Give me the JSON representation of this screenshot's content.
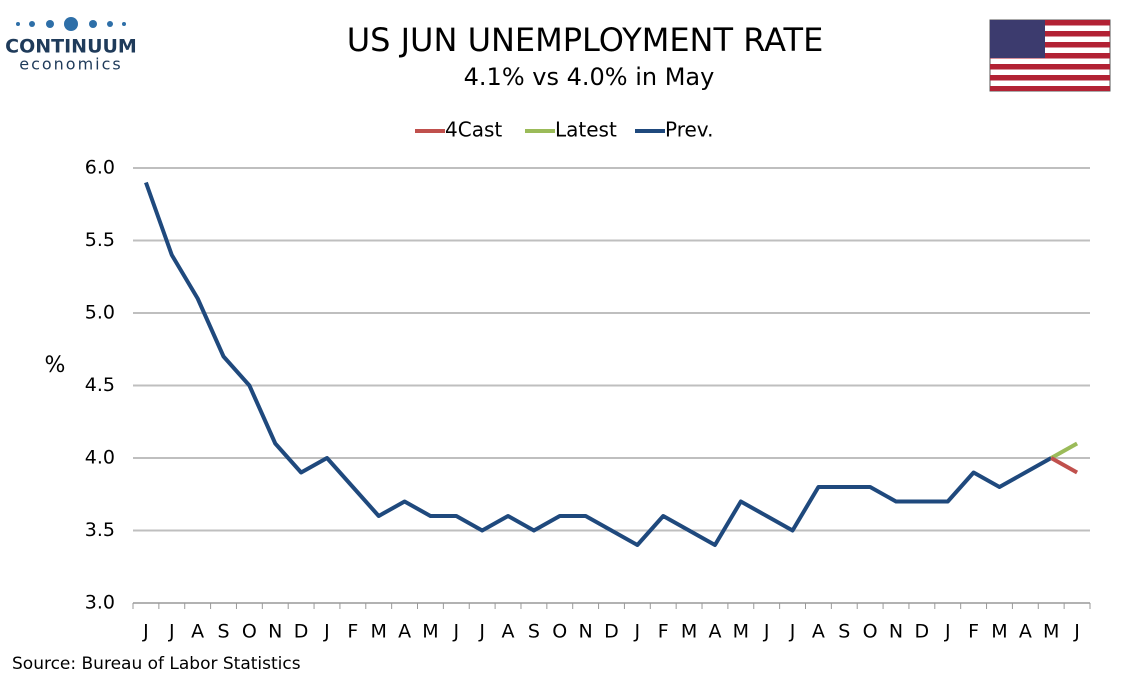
{
  "logo": {
    "name": "CONTINUUM",
    "tagline": "economics"
  },
  "chart_data": {
    "type": "line",
    "title": "US JUN UNEMPLOYMENT RATE",
    "subtitle": "4.1% vs 4.0% in May",
    "y_label": "%",
    "source": "Source: Bureau of Labor Statistics",
    "categories": [
      "J",
      "J",
      "A",
      "S",
      "O",
      "N",
      "D",
      "J",
      "F",
      "M",
      "A",
      "M",
      "J",
      "J",
      "A",
      "S",
      "O",
      "N",
      "D",
      "J",
      "F",
      "M",
      "A",
      "M",
      "J",
      "J",
      "A",
      "S",
      "O",
      "N",
      "D",
      "J",
      "F",
      "M",
      "A",
      "M",
      "J"
    ],
    "series": [
      {
        "name": "4Cast",
        "color": "#c0504d",
        "values": [
          null,
          null,
          null,
          null,
          null,
          null,
          null,
          null,
          null,
          null,
          null,
          null,
          null,
          null,
          null,
          null,
          null,
          null,
          null,
          null,
          null,
          null,
          null,
          null,
          null,
          null,
          null,
          null,
          null,
          null,
          null,
          null,
          null,
          null,
          null,
          4.0,
          3.9
        ]
      },
      {
        "name": "Latest",
        "color": "#9bbb59",
        "values": [
          null,
          null,
          null,
          null,
          null,
          null,
          null,
          null,
          null,
          null,
          null,
          null,
          null,
          null,
          null,
          null,
          null,
          null,
          null,
          null,
          null,
          null,
          null,
          null,
          null,
          null,
          null,
          null,
          null,
          null,
          null,
          null,
          null,
          null,
          null,
          4.0,
          4.1
        ]
      },
      {
        "name": "Prev.",
        "color": "#1f497d",
        "values": [
          5.9,
          5.4,
          5.1,
          4.7,
          4.5,
          4.1,
          3.9,
          4.0,
          3.8,
          3.6,
          3.7,
          3.6,
          3.6,
          3.5,
          3.6,
          3.5,
          3.6,
          3.6,
          3.5,
          3.4,
          3.6,
          3.5,
          3.4,
          3.7,
          3.6,
          3.5,
          3.8,
          3.8,
          3.8,
          3.7,
          3.7,
          3.7,
          3.9,
          3.8,
          3.9,
          4.0,
          null
        ]
      }
    ],
    "ylim": [
      3.0,
      6.0
    ],
    "yticks": [
      {
        "value": 3.0,
        "label": "3.0"
      },
      {
        "value": 3.5,
        "label": "3.5"
      },
      {
        "value": 4.0,
        "label": "4.0"
      },
      {
        "value": 4.5,
        "label": "4.5"
      },
      {
        "value": 5.0,
        "label": "5.0"
      },
      {
        "value": 5.5,
        "label": "5.5"
      },
      {
        "value": 6.0,
        "label": "6.0"
      }
    ],
    "grid": true,
    "legend": "top"
  }
}
